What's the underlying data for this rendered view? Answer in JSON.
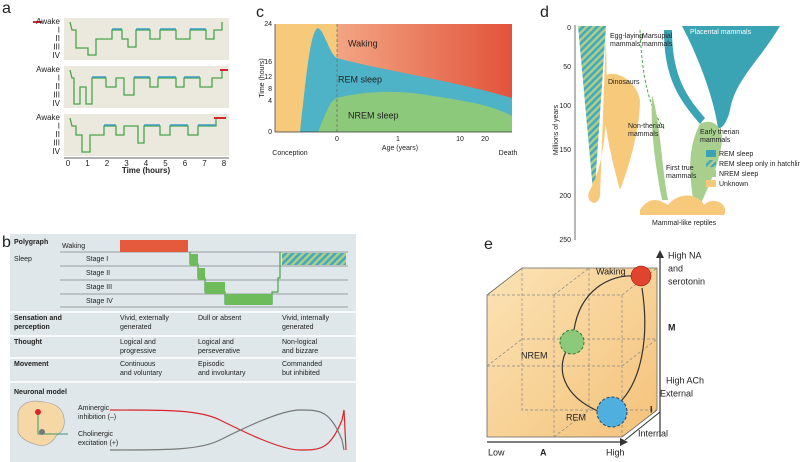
{
  "panels": {
    "a": {
      "label": "a",
      "stages": [
        "Awake",
        "I",
        "II",
        "III",
        "IV"
      ],
      "x_ticks": [
        "0",
        "1",
        "2",
        "3",
        "4",
        "5",
        "6",
        "7",
        "8"
      ],
      "x_label": "Time (hours)"
    },
    "b": {
      "label": "b",
      "polygraph": "Polygraph",
      "waking": "Waking",
      "sleep": "Sleep",
      "stages": [
        "Stage I",
        "Stage II",
        "Stage III",
        "Stage IV"
      ],
      "rows": [
        {
          "head": [
            "Sensation and",
            "perception"
          ],
          "cells": [
            [
              "Vivid, externally",
              "generated"
            ],
            [
              "Dull or absent"
            ],
            [
              "Vivid, internally",
              "generated"
            ]
          ]
        },
        {
          "head": [
            "Thought"
          ],
          "cells": [
            [
              "Logical and",
              "progressive"
            ],
            [
              "Logical and",
              "perseverative"
            ],
            [
              "Non-logical",
              "and bizzare"
            ]
          ]
        },
        {
          "head": [
            "Movement"
          ],
          "cells": [
            [
              "Continuous",
              "and voluntary"
            ],
            [
              "Episodic",
              "and involuntary"
            ],
            [
              "Commanded",
              "but inhibited"
            ]
          ]
        }
      ],
      "neuronal_model": "Neuronal model",
      "aminergic": [
        "Aminergic",
        "inhibition (–)"
      ],
      "cholinergic": [
        "Cholinergic",
        "excitation (+)"
      ]
    },
    "c": {
      "label": "c",
      "y_label": "Time (hours)",
      "y_ticks": [
        "24",
        "16",
        "12",
        "8",
        "4",
        "0"
      ],
      "regions": [
        "Waking",
        "REM sleep",
        "NREM sleep"
      ],
      "x_ticks": [
        "Conception",
        "0",
        "1",
        "10",
        "20",
        "Death"
      ],
      "x_label": "Age (years)"
    },
    "d": {
      "label": "d",
      "y_label": "Millions of years",
      "y_ticks": [
        "0",
        "50",
        "100",
        "150",
        "200",
        "250"
      ],
      "groups": [
        [
          "Egg-laying",
          "mammals"
        ],
        [
          "Marsupial",
          "mammals"
        ],
        [
          "Placental mammals"
        ],
        [
          "Dinosaurs"
        ],
        [
          "Non-therian",
          "mammals"
        ],
        [
          "Early therian",
          "mammals"
        ],
        [
          "First true",
          "mammals"
        ],
        [
          "Mammal-like reptiles"
        ]
      ],
      "legend": [
        "REM sleep",
        "REM sleep only in hatchlings",
        "NREM sleep",
        "Unknown"
      ]
    },
    "e": {
      "label": "e",
      "states": [
        "Waking",
        "NREM",
        "REM"
      ],
      "high_na": [
        "High NA",
        "and",
        "serotonin"
      ],
      "m": "M",
      "high_ach": "High ACh",
      "external": "External",
      "i": "I",
      "internal": "Internal",
      "low": "Low",
      "a": "A",
      "high": "High"
    }
  }
}
